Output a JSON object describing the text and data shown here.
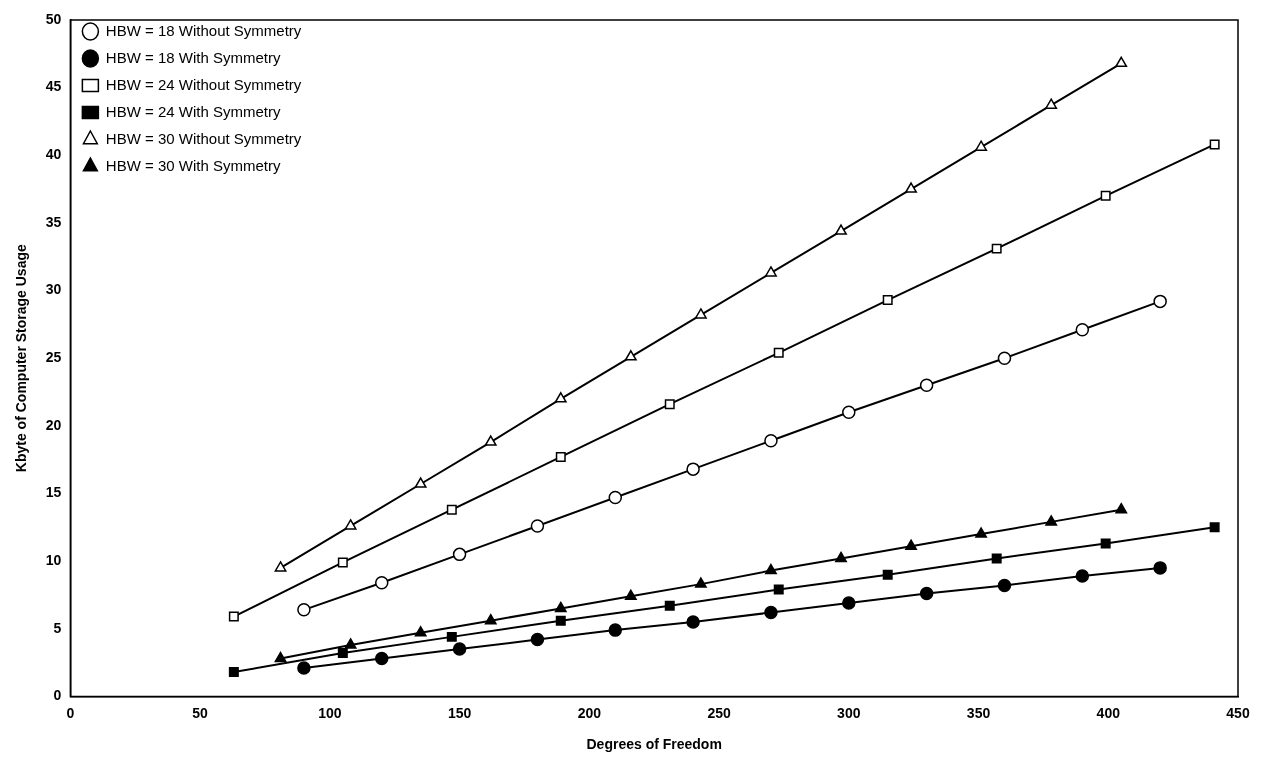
{
  "chart_data": {
    "type": "line",
    "xlabel": "Degrees of Freedom",
    "ylabel": "Kbyte of Computer Storage Usage",
    "xlim": [
      0,
      450
    ],
    "xticks": [
      0,
      50,
      100,
      150,
      200,
      250,
      300,
      350,
      400,
      450
    ],
    "ylim": [
      0,
      50
    ],
    "yticks": [
      0,
      5,
      10,
      15,
      20,
      25,
      30,
      35,
      40,
      45,
      50
    ],
    "grid": false,
    "legend": "top left",
    "line_style": "solid",
    "series": [
      {
        "name": "HBW = 18 Without Symmetry",
        "color": "#000000",
        "marker": "circle-open",
        "x": [
          90,
          120,
          150,
          180,
          210,
          240,
          270,
          300,
          330,
          360,
          390,
          420
        ],
        "values": [
          6.4,
          8.4,
          10.5,
          12.6,
          14.7,
          16.8,
          18.9,
          21.0,
          23.0,
          25.0,
          27.1,
          29.2
        ]
      },
      {
        "name": "HBW = 18 With Symmetry",
        "color": "#000000",
        "marker": "circle",
        "x": [
          90,
          120,
          150,
          180,
          210,
          240,
          270,
          300,
          330,
          360,
          390,
          420
        ],
        "values": [
          2.1,
          2.8,
          3.5,
          4.2,
          4.9,
          5.5,
          6.2,
          6.9,
          7.6,
          8.2,
          8.9,
          9.5
        ]
      },
      {
        "name": "HBW = 24 Without Symmetry",
        "color": "#000000",
        "marker": "square-open",
        "x": [
          63,
          105,
          147,
          189,
          231,
          273,
          315,
          357,
          399,
          441
        ],
        "values": [
          5.9,
          9.9,
          13.8,
          17.7,
          21.6,
          25.4,
          29.3,
          33.1,
          37.0,
          40.8
        ]
      },
      {
        "name": "HBW = 24 With Symmetry",
        "color": "#000000",
        "marker": "square",
        "x": [
          63,
          105,
          147,
          189,
          231,
          273,
          315,
          357,
          399,
          441
        ],
        "values": [
          1.8,
          3.2,
          4.4,
          5.6,
          6.7,
          7.9,
          9.0,
          10.2,
          11.3,
          12.5
        ]
      },
      {
        "name": "HBW = 30 Without Symmetry",
        "color": "#000000",
        "marker": "triangle-open",
        "x": [
          81,
          108,
          135,
          162,
          189,
          216,
          243,
          270,
          297,
          324,
          351,
          378,
          405
        ],
        "values": [
          9.5,
          12.6,
          15.7,
          18.8,
          22.0,
          25.1,
          28.2,
          31.3,
          34.4,
          37.5,
          40.6,
          43.7,
          46.8
        ]
      },
      {
        "name": "HBW = 30 With Symmetry",
        "color": "#000000",
        "marker": "triangle",
        "x": [
          81,
          108,
          135,
          162,
          189,
          216,
          243,
          270,
          297,
          324,
          351,
          378,
          405
        ],
        "values": [
          2.8,
          3.8,
          4.7,
          5.6,
          6.5,
          7.4,
          8.3,
          9.3,
          10.2,
          11.1,
          12.0,
          12.9,
          13.8
        ]
      }
    ]
  }
}
